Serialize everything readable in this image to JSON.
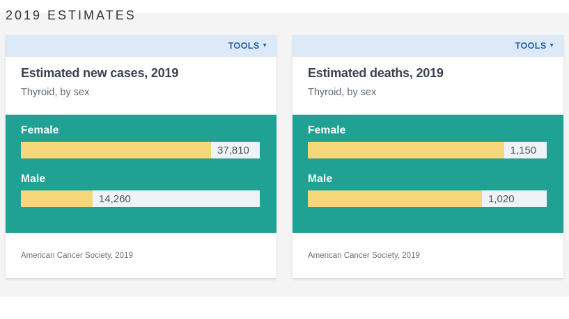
{
  "page": {
    "title": "2019 ESTIMATES"
  },
  "tools": {
    "label": "TOOLS"
  },
  "icons": {
    "chevron_down": "▾"
  },
  "colors": {
    "band_background": "#f4f4f5",
    "tools_bar_background": "#dce9f7",
    "tools_text": "#2a5fad",
    "chart_background_teal": "#1fa293",
    "bar_fill_yellow": "#f5d679",
    "bar_track_gray": "#f0f3f5",
    "title_text": "#3a4350",
    "value_text": "#4d535c"
  },
  "chart_data": [
    {
      "type": "bar",
      "orientation": "horizontal",
      "title": "Estimated new cases, 2019",
      "subtitle": "Thyroid, by sex",
      "categories": [
        "Female",
        "Male"
      ],
      "values": [
        37810,
        14260
      ],
      "value_labels": [
        "37,810",
        "14,260"
      ],
      "xlim": [
        0,
        47500
      ],
      "grid": false,
      "legend": false,
      "source": "American Cancer Society, 2019"
    },
    {
      "type": "bar",
      "orientation": "horizontal",
      "title": "Estimated deaths, 2019",
      "subtitle": "Thyroid, by sex",
      "categories": [
        "Female",
        "Male"
      ],
      "values": [
        1150,
        1020
      ],
      "value_labels": [
        "1,150",
        "1,020"
      ],
      "xlim": [
        0,
        1400
      ],
      "grid": false,
      "legend": false,
      "source": "American Cancer Society, 2019"
    }
  ]
}
